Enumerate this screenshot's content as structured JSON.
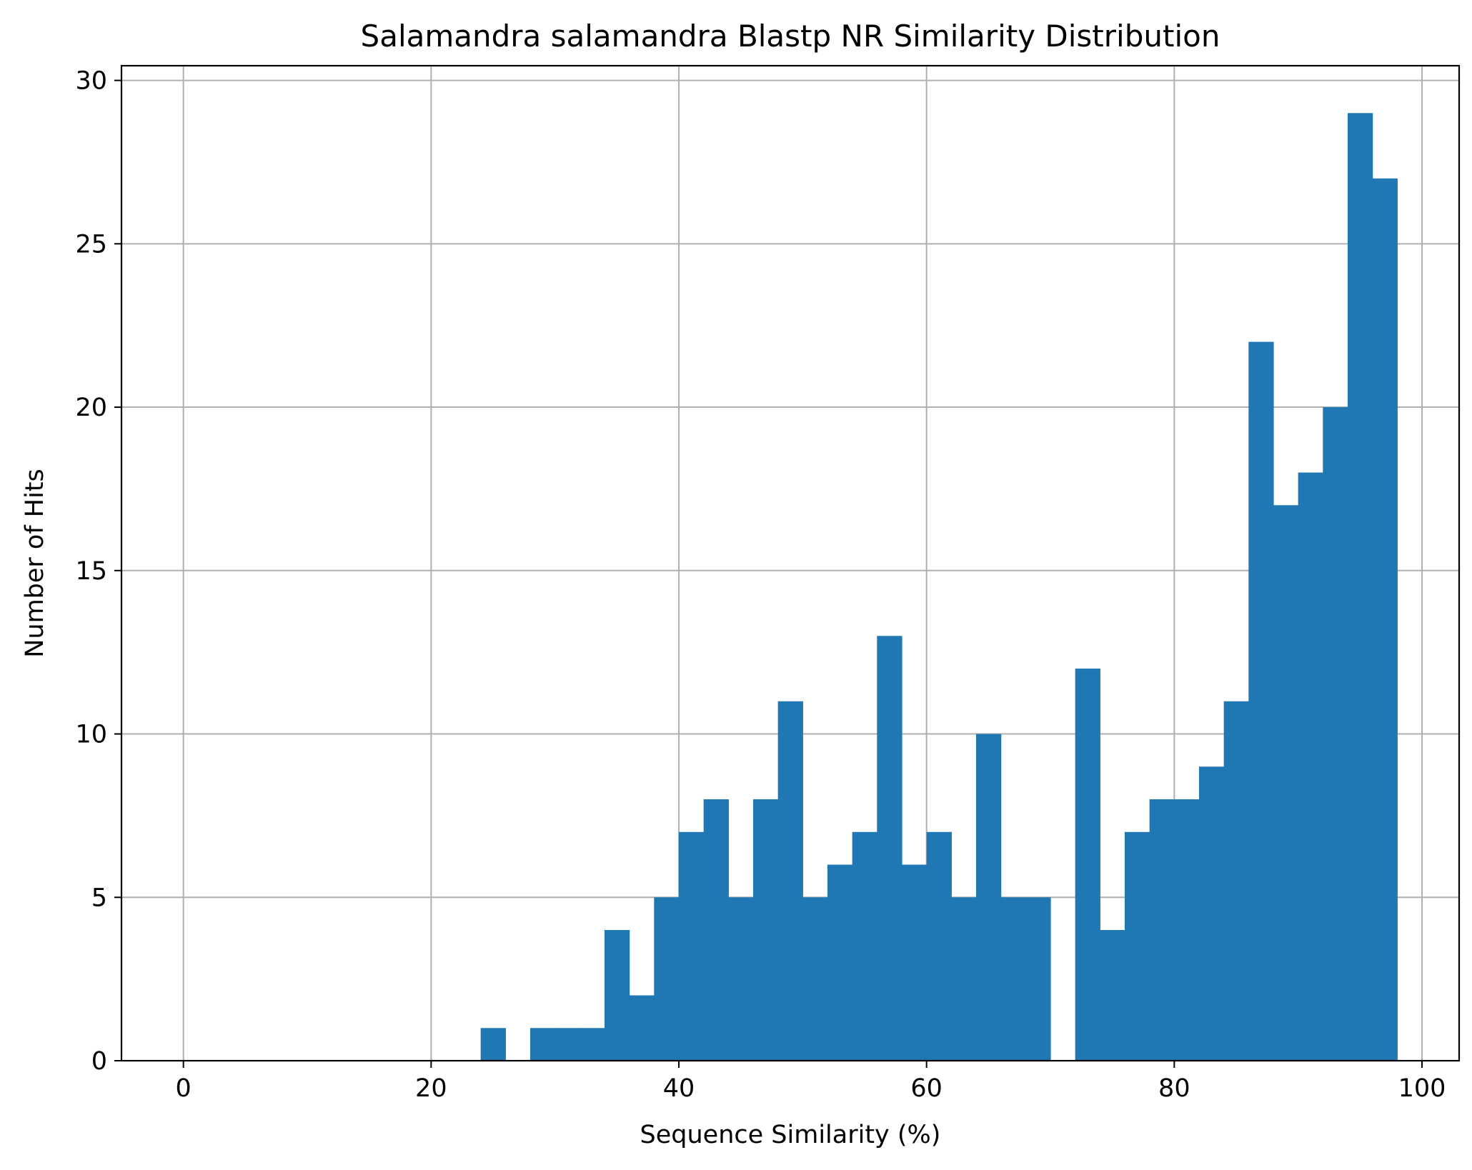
{
  "chart_data": {
    "type": "bar",
    "title": "Salamandra salamandra Blastp NR Similarity Distribution",
    "xlabel": "Sequence Similarity (%)",
    "ylabel": "Number of Hits",
    "xlim": [
      -5,
      103
    ],
    "ylim": [
      0,
      30.45
    ],
    "xticks": [
      0,
      20,
      40,
      60,
      80,
      100
    ],
    "yticks": [
      0,
      5,
      10,
      15,
      20,
      25,
      30
    ],
    "grid": true,
    "bar_color": "#1f77b4",
    "bin_width": 2,
    "bins": [
      {
        "x0": 24,
        "count": 1
      },
      {
        "x0": 26,
        "count": 0
      },
      {
        "x0": 28,
        "count": 1
      },
      {
        "x0": 30,
        "count": 1
      },
      {
        "x0": 32,
        "count": 1
      },
      {
        "x0": 34,
        "count": 4
      },
      {
        "x0": 36,
        "count": 2
      },
      {
        "x0": 38,
        "count": 5
      },
      {
        "x0": 40,
        "count": 7
      },
      {
        "x0": 42,
        "count": 8
      },
      {
        "x0": 44,
        "count": 5
      },
      {
        "x0": 46,
        "count": 8
      },
      {
        "x0": 48,
        "count": 11
      },
      {
        "x0": 50,
        "count": 5
      },
      {
        "x0": 52,
        "count": 6
      },
      {
        "x0": 54,
        "count": 7
      },
      {
        "x0": 56,
        "count": 13
      },
      {
        "x0": 58,
        "count": 6
      },
      {
        "x0": 60,
        "count": 7
      },
      {
        "x0": 62,
        "count": 5
      },
      {
        "x0": 64,
        "count": 10
      },
      {
        "x0": 66,
        "count": 5
      },
      {
        "x0": 68,
        "count": 5
      },
      {
        "x0": 70,
        "count": 0
      },
      {
        "x0": 72,
        "count": 12
      },
      {
        "x0": 74,
        "count": 4
      },
      {
        "x0": 76,
        "count": 7
      },
      {
        "x0": 78,
        "count": 8
      },
      {
        "x0": 80,
        "count": 8
      },
      {
        "x0": 82,
        "count": 9
      },
      {
        "x0": 84,
        "count": 11
      },
      {
        "x0": 86,
        "count": 22
      },
      {
        "x0": 88,
        "count": 17
      },
      {
        "x0": 90,
        "count": 18
      },
      {
        "x0": 92,
        "count": 20
      },
      {
        "x0": 94,
        "count": 29
      },
      {
        "x0": 96,
        "count": 27
      }
    ]
  }
}
